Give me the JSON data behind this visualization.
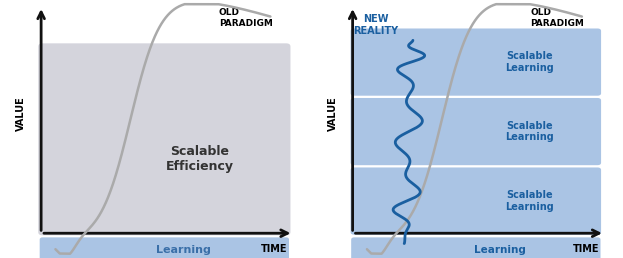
{
  "left": {
    "title_old": "OLD\nPARADIGM",
    "label_value": "VALUE",
    "label_time": "TIME",
    "label_efficiency": "Scalable\nEfficiency",
    "label_learning": "Learning",
    "box_color": "#d4d4dc",
    "learning_bar_color": "#aac4e4",
    "learning_text_color": "#3a6fa8",
    "axis_color": "#111111",
    "curve_color": "#aaaaaa"
  },
  "right": {
    "title_old": "OLD\nPARADIGM",
    "title_new": "NEW\nREALITY",
    "label_value": "VALUE",
    "label_time": "TIME",
    "label_learning": "Learning",
    "label_scalable": "Scalable\nLearning",
    "scalable_bar_color": "#aac4e4",
    "learning_bar_color": "#aac4e4",
    "text_color_new": "#1a5fa0",
    "text_color_scalable": "#1a5fa0",
    "axis_color": "#111111",
    "old_curve_color": "#aaaaaa",
    "new_curve_color": "#1a5fa0"
  }
}
